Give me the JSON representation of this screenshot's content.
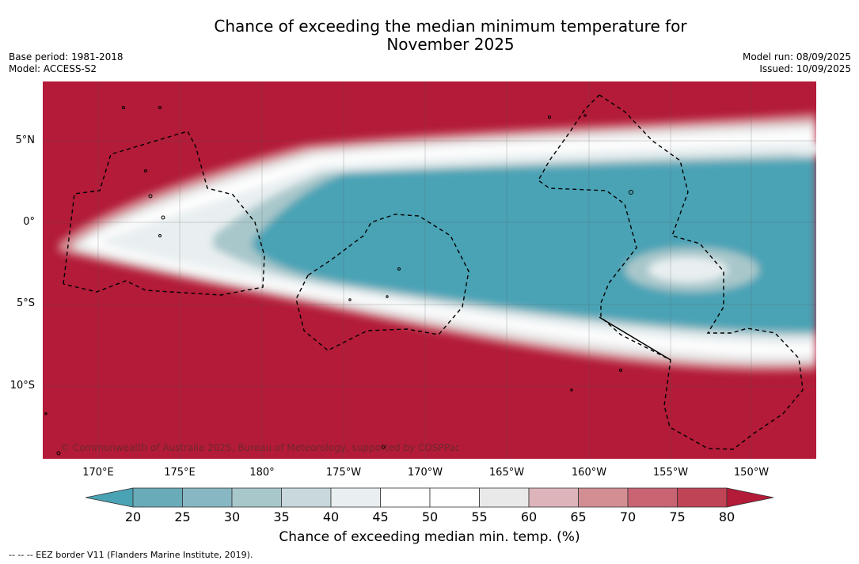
{
  "title_line1": "Chance of exceeding the median minimum temperature for",
  "title_line2": "November 2025",
  "base_period": "Base period: 1981-2018",
  "model": "Model: ACCESS-S2",
  "model_run": "Model run: 08/09/2025",
  "issued": "Issued: 10/09/2025",
  "copyright": "© Commonwealth of Australia 2025, Bureau of Meteorology, supported by COSPPac",
  "lat_labels": [
    "5°N",
    "0°",
    "5°S",
    "10°S"
  ],
  "lon_labels": [
    "170°E",
    "175°E",
    "180°",
    "175°W",
    "170°W",
    "165°W",
    "160°W",
    "155°W",
    "150°W"
  ],
  "colorbar": {
    "ticks": [
      "20",
      "25",
      "30",
      "35",
      "40",
      "45",
      "50",
      "55",
      "60",
      "65",
      "70",
      "75",
      "80"
    ],
    "label": "Chance of exceeding median min. temp. (%)",
    "colors": {
      "lt20": "#4aa3b5",
      "20-25": "#69abb9",
      "25-30": "#87b7c3",
      "30-35": "#a8c7cb",
      "35-40": "#c9d8dc",
      "40-45": "#e9eff1",
      "45-50": "#ffffff",
      "50-55": "#ffffff",
      "55-60": "#e9e9e9",
      "60-65": "#dcb4b9",
      "65-70": "#d38e94",
      "70-75": "#c96472",
      "75-80": "#bf4456",
      "gt80": "#b31b38"
    }
  },
  "footnote": "--  --  -- EEZ border V11 (Flanders Marine Institute, 2019)."
}
